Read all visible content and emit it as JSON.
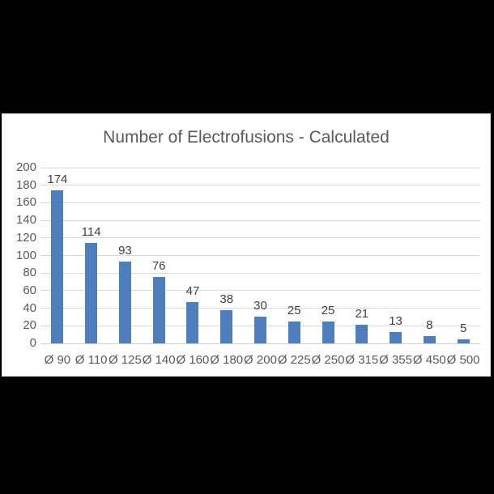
{
  "page": {
    "background_color": "#000000",
    "chart_background_color": "#ffffff"
  },
  "chart_data": {
    "type": "bar",
    "title": "Number of Electrofusions - Calculated",
    "categories": [
      "Ø 90",
      "Ø 110",
      "Ø 125",
      "Ø 140",
      "Ø 160",
      "Ø 180",
      "Ø 200",
      "Ø 225",
      "Ø 250",
      "Ø 315",
      "Ø 355",
      "Ø 450",
      "Ø 500"
    ],
    "values": [
      174,
      114,
      93,
      76,
      47,
      38,
      30,
      25,
      25,
      21,
      13,
      8,
      5
    ],
    "data_labels": [
      174,
      114,
      93,
      76,
      47,
      38,
      30,
      25,
      25,
      21,
      13,
      8,
      5
    ],
    "xlabel": "",
    "ylabel": "",
    "ylim": [
      0,
      200
    ],
    "yticks": [
      0,
      20,
      40,
      60,
      80,
      100,
      120,
      140,
      160,
      180,
      200
    ],
    "grid": true,
    "legend_position": "none",
    "colors": {
      "bar": "#4e7ebd",
      "gridline": "#d9d9d9",
      "title_text": "#595959",
      "axis_text": "#595959",
      "data_label_text": "#404040"
    }
  }
}
